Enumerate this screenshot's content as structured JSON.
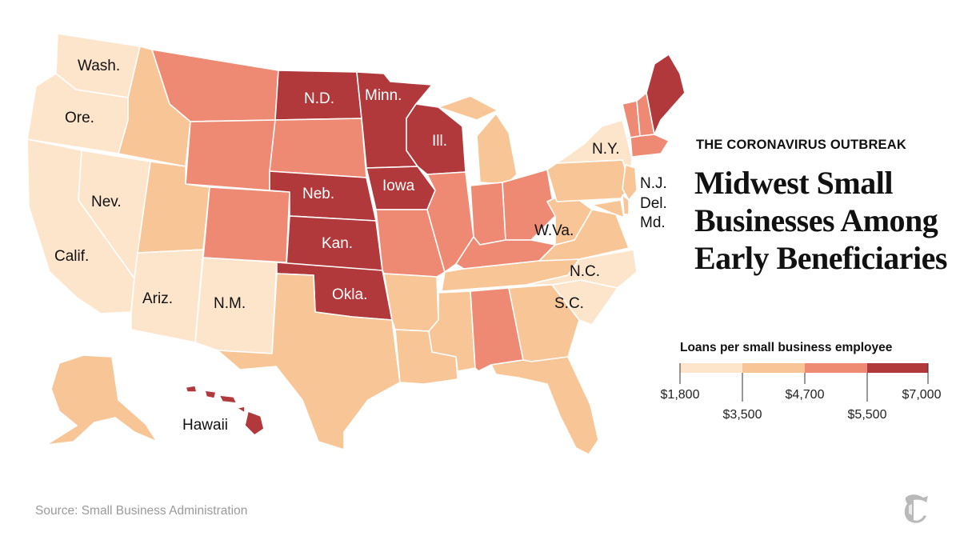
{
  "kicker": "THE CORONAVIRUS OUTBREAK",
  "title": "Midwest Small Businesses Among Early Beneficiaries",
  "legend": {
    "title": "Loans per small business employee",
    "breaks": [
      "$1,800",
      "$3,500",
      "$4,700",
      "$5,500",
      "$7,000"
    ],
    "colors": [
      "#fde5cc",
      "#f8c596",
      "#ee8a73",
      "#b1393b"
    ]
  },
  "source": "Source: Small Business Administration",
  "logo_icon": "nyt-logo-icon",
  "state_labels": {
    "wa": "Wash.",
    "or": "Ore.",
    "ca": "Calif.",
    "nv": "Nev.",
    "az": "Ariz.",
    "nm": "N.M.",
    "nd": "N.D.",
    "mn": "Minn.",
    "wi": "Ill.",
    "ne": "Neb.",
    "ia": "Iowa",
    "ks": "Kan.",
    "ok": "Okla.",
    "ny": "N.Y.",
    "nj": "N.J.",
    "de": "Del.",
    "md": "Md.",
    "wv": "W.Va.",
    "nc": "N.C.",
    "sc": "S.C.",
    "hi": "Hawaii"
  },
  "state_bins": {
    "wa": 0,
    "or": 0,
    "ca": 0,
    "nv": 0,
    "az": 0,
    "nm": 0,
    "id": 1,
    "ut": 1,
    "mt": 2,
    "wy": 2,
    "co": 2,
    "sd": 2,
    "nd": 3,
    "mn": 3,
    "wi": 3,
    "ne": 3,
    "ia": 3,
    "ks": 3,
    "ok": 3,
    "tx": 1,
    "mo": 2,
    "ar": 1,
    "la": 1,
    "il": 2,
    "in": 2,
    "oh": 2,
    "ky": 2,
    "tn": 1,
    "ms": 1,
    "al": 2,
    "ga": 1,
    "fl": 1,
    "sc": 0,
    "nc": 0,
    "va": 1,
    "wv": 1,
    "pa": 1,
    "ny": 0,
    "mi": 1,
    "me": 3,
    "vt": 2,
    "nh": 2,
    "ma": 2,
    "nj": 1,
    "md": 1,
    "de": 1,
    "ak": 1,
    "hi": 3
  }
}
